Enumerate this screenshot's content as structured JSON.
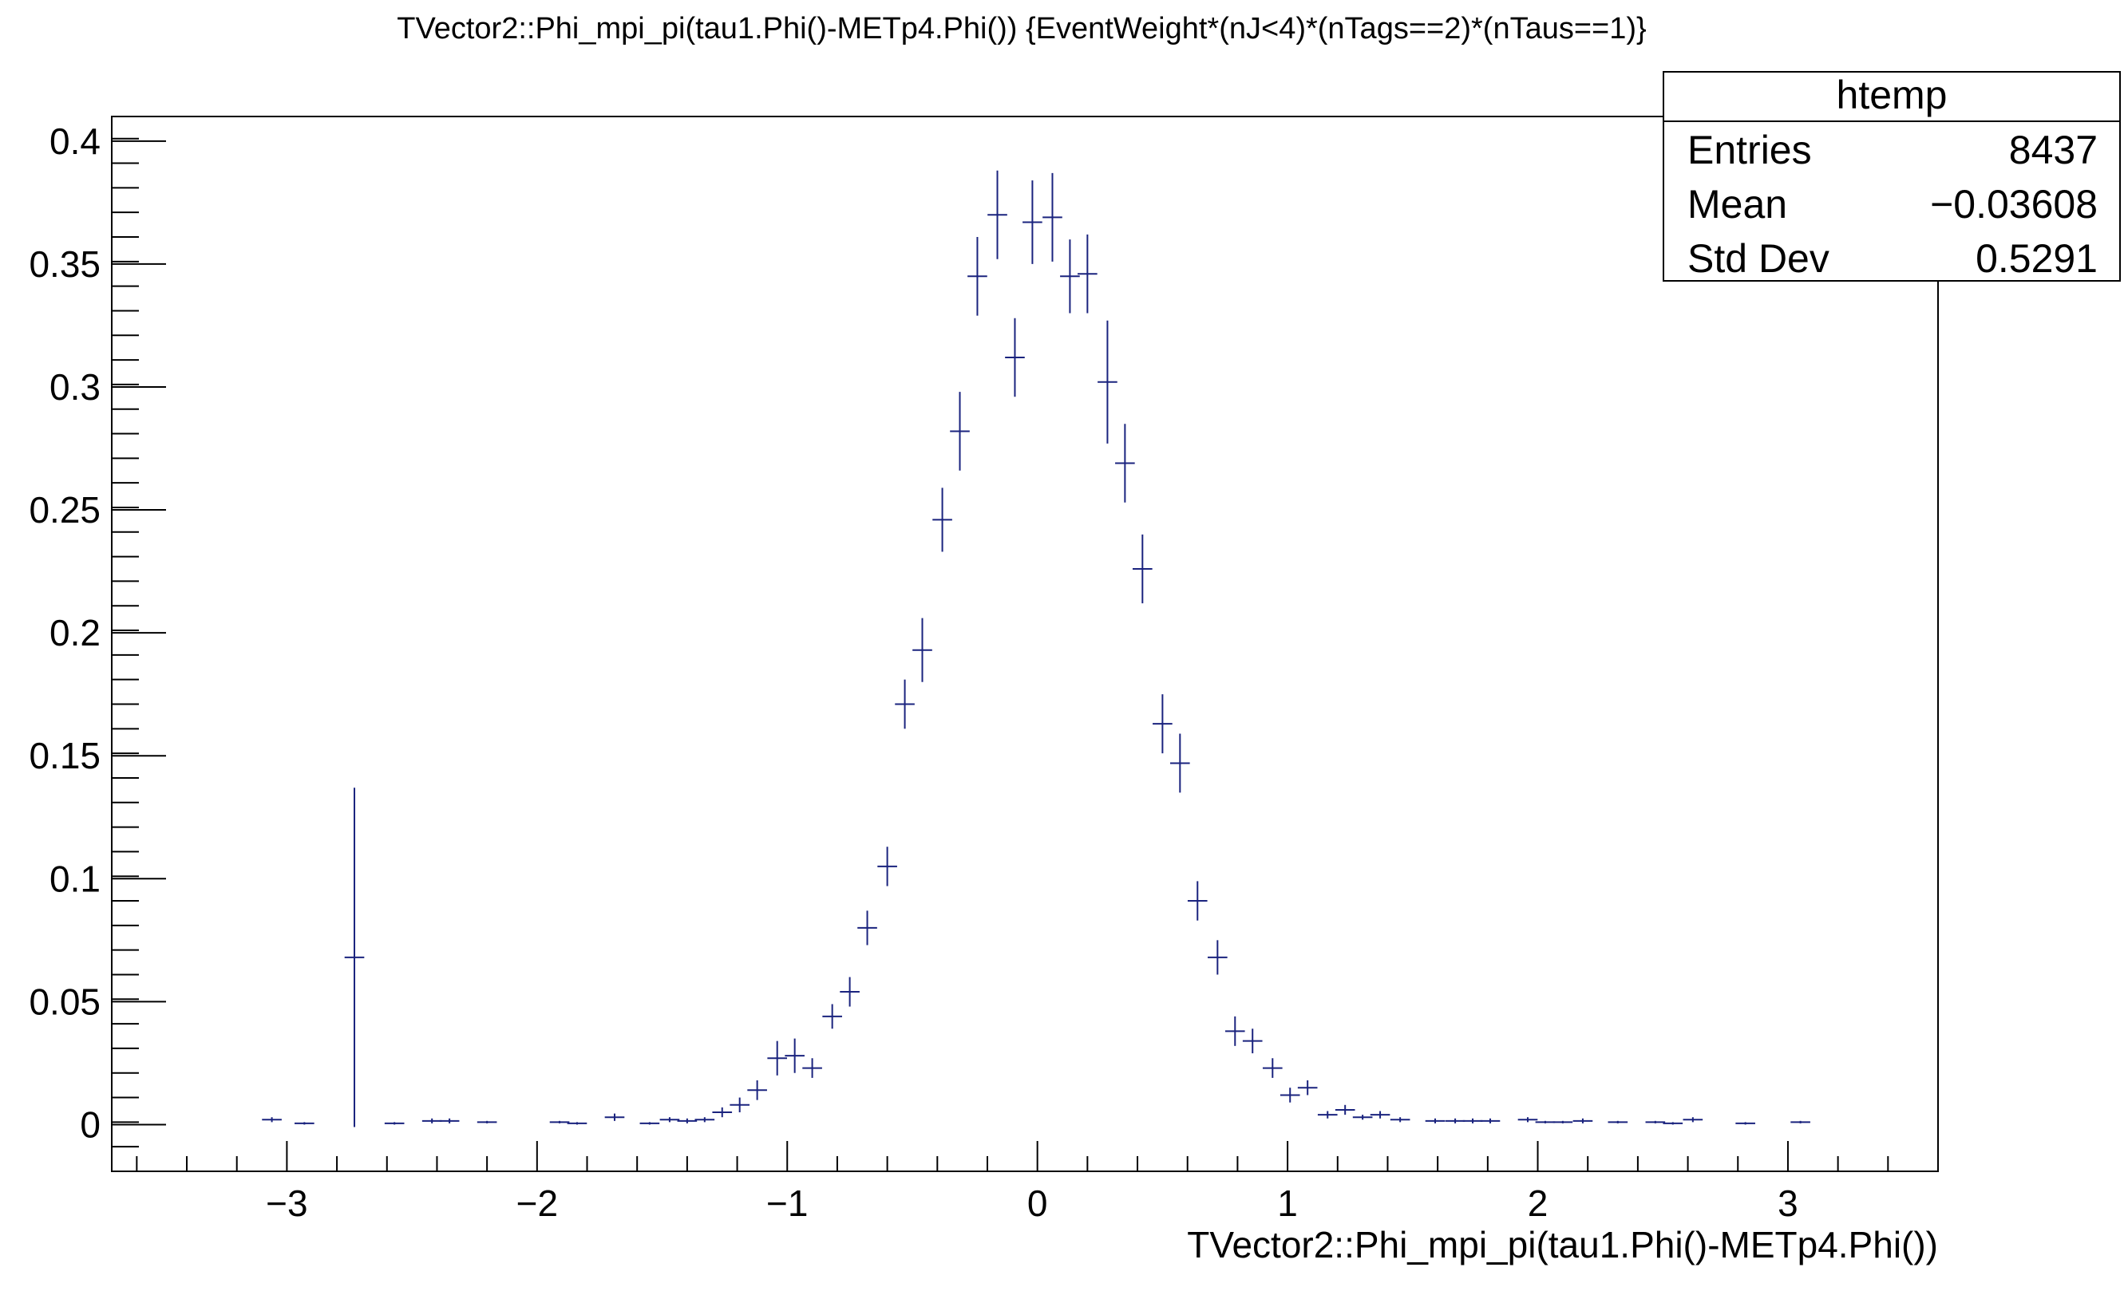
{
  "chart_data": {
    "type": "scatter",
    "title": "TVector2::Phi_mpi_pi(tau1.Phi()-METp4.Phi()) {EventWeight*(nJ<4)*(nTags==2)*(nTaus==1)}",
    "xlabel": "TVector2::Phi_mpi_pi(tau1.Phi()-METp4.Phi())",
    "ylabel": "",
    "xlim": [
      -3.7,
      3.6
    ],
    "ylim": [
      -0.019,
      0.41
    ],
    "x_ticks": [
      -3,
      -2,
      -1,
      0,
      1,
      2,
      3
    ],
    "x_tick_labels": [
      "−3",
      "−2",
      "−1",
      "0",
      "1",
      "2",
      "3"
    ],
    "y_ticks": [
      0,
      0.05,
      0.1,
      0.15,
      0.2,
      0.25,
      0.3,
      0.35,
      0.4
    ],
    "y_tick_labels": [
      "0",
      "0.05",
      "0.1",
      "0.15",
      "0.2",
      "0.25",
      "0.3",
      "0.35",
      "0.4"
    ],
    "grid": false,
    "bin_half_width": 0.0393,
    "marker_color": "#1a237e",
    "series": [
      {
        "points": [
          {
            "x": -3.06,
            "y": 0.002,
            "err": 0.001
          },
          {
            "x": -2.93,
            "y": 0.0005,
            "err": 0.0005
          },
          {
            "x": -2.73,
            "y": 0.068,
            "err": 0.069
          },
          {
            "x": -2.57,
            "y": 0.0005,
            "err": 0.0005
          },
          {
            "x": -2.42,
            "y": 0.0015,
            "err": 0.001
          },
          {
            "x": -2.35,
            "y": 0.0015,
            "err": 0.001
          },
          {
            "x": -2.2,
            "y": 0.001,
            "err": 0.0005
          },
          {
            "x": -1.91,
            "y": 0.001,
            "err": 0.0005
          },
          {
            "x": -1.84,
            "y": 0.0005,
            "err": 0.0005
          },
          {
            "x": -1.69,
            "y": 0.003,
            "err": 0.0015
          },
          {
            "x": -1.55,
            "y": 0.0005,
            "err": 0.0005
          },
          {
            "x": -1.47,
            "y": 0.002,
            "err": 0.001
          },
          {
            "x": -1.4,
            "y": 0.0015,
            "err": 0.001
          },
          {
            "x": -1.33,
            "y": 0.002,
            "err": 0.001
          },
          {
            "x": -1.26,
            "y": 0.005,
            "err": 0.002
          },
          {
            "x": -1.19,
            "y": 0.008,
            "err": 0.003
          },
          {
            "x": -1.12,
            "y": 0.014,
            "err": 0.004
          },
          {
            "x": -1.04,
            "y": 0.027,
            "err": 0.007
          },
          {
            "x": -0.97,
            "y": 0.028,
            "err": 0.007
          },
          {
            "x": -0.9,
            "y": 0.023,
            "err": 0.004
          },
          {
            "x": -0.82,
            "y": 0.044,
            "err": 0.005
          },
          {
            "x": -0.75,
            "y": 0.054,
            "err": 0.006
          },
          {
            "x": -0.68,
            "y": 0.08,
            "err": 0.007
          },
          {
            "x": -0.6,
            "y": 0.105,
            "err": 0.008
          },
          {
            "x": -0.53,
            "y": 0.171,
            "err": 0.01
          },
          {
            "x": -0.46,
            "y": 0.193,
            "err": 0.013
          },
          {
            "x": -0.38,
            "y": 0.246,
            "err": 0.013
          },
          {
            "x": -0.31,
            "y": 0.282,
            "err": 0.016
          },
          {
            "x": -0.24,
            "y": 0.345,
            "err": 0.016
          },
          {
            "x": -0.16,
            "y": 0.37,
            "err": 0.018
          },
          {
            "x": -0.09,
            "y": 0.312,
            "err": 0.016
          },
          {
            "x": -0.02,
            "y": 0.367,
            "err": 0.017
          },
          {
            "x": 0.06,
            "y": 0.369,
            "err": 0.018
          },
          {
            "x": 0.13,
            "y": 0.345,
            "err": 0.015
          },
          {
            "x": 0.2,
            "y": 0.346,
            "err": 0.016
          },
          {
            "x": 0.28,
            "y": 0.302,
            "err": 0.025
          },
          {
            "x": 0.35,
            "y": 0.269,
            "err": 0.016
          },
          {
            "x": 0.42,
            "y": 0.226,
            "err": 0.014
          },
          {
            "x": 0.5,
            "y": 0.163,
            "err": 0.012
          },
          {
            "x": 0.57,
            "y": 0.147,
            "err": 0.012
          },
          {
            "x": 0.64,
            "y": 0.091,
            "err": 0.008
          },
          {
            "x": 0.72,
            "y": 0.068,
            "err": 0.007
          },
          {
            "x": 0.79,
            "y": 0.038,
            "err": 0.006
          },
          {
            "x": 0.86,
            "y": 0.034,
            "err": 0.005
          },
          {
            "x": 0.94,
            "y": 0.023,
            "err": 0.004
          },
          {
            "x": 1.01,
            "y": 0.012,
            "err": 0.003
          },
          {
            "x": 1.08,
            "y": 0.015,
            "err": 0.003
          },
          {
            "x": 1.16,
            "y": 0.004,
            "err": 0.0015
          },
          {
            "x": 1.23,
            "y": 0.006,
            "err": 0.002
          },
          {
            "x": 1.3,
            "y": 0.003,
            "err": 0.001
          },
          {
            "x": 1.37,
            "y": 0.004,
            "err": 0.0015
          },
          {
            "x": 1.45,
            "y": 0.002,
            "err": 0.001
          },
          {
            "x": 1.59,
            "y": 0.0015,
            "err": 0.001
          },
          {
            "x": 1.67,
            "y": 0.0015,
            "err": 0.001
          },
          {
            "x": 1.74,
            "y": 0.0015,
            "err": 0.001
          },
          {
            "x": 1.81,
            "y": 0.0015,
            "err": 0.001
          },
          {
            "x": 1.96,
            "y": 0.002,
            "err": 0.001
          },
          {
            "x": 2.03,
            "y": 0.001,
            "err": 0.0005
          },
          {
            "x": 2.1,
            "y": 0.001,
            "err": 0.0005
          },
          {
            "x": 2.18,
            "y": 0.0015,
            "err": 0.001
          },
          {
            "x": 2.32,
            "y": 0.001,
            "err": 0.0005
          },
          {
            "x": 2.47,
            "y": 0.001,
            "err": 0.0005
          },
          {
            "x": 2.54,
            "y": 0.0005,
            "err": 0.0005
          },
          {
            "x": 2.62,
            "y": 0.002,
            "err": 0.001
          },
          {
            "x": 2.83,
            "y": 0.0005,
            "err": 0.0005
          },
          {
            "x": 3.05,
            "y": 0.001,
            "err": 0.0005
          }
        ]
      }
    ],
    "stats_box": {
      "title": "htemp",
      "rows": [
        {
          "label": "Entries",
          "value": "8437"
        },
        {
          "label": "Mean",
          "value": "−0.03608"
        },
        {
          "label": "Std Dev",
          "value": "0.5291"
        }
      ]
    }
  }
}
